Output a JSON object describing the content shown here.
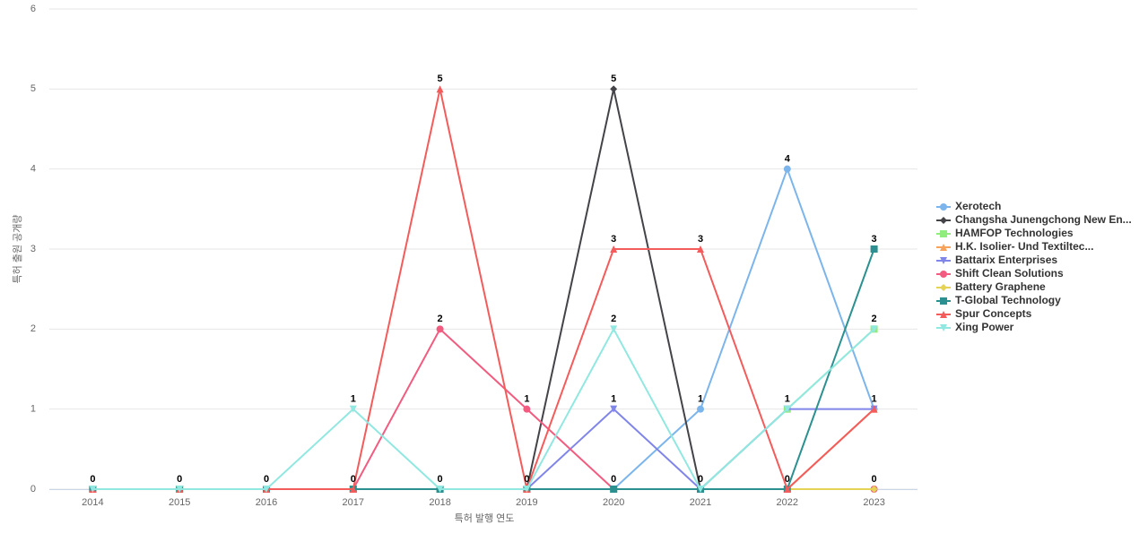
{
  "chart_data": {
    "type": "line",
    "xlabel": "특허 발행 연도",
    "ylabel": "특허 출원 공개량",
    "categories": [
      "2014",
      "2015",
      "2016",
      "2017",
      "2018",
      "2019",
      "2020",
      "2021",
      "2022",
      "2023"
    ],
    "ylim": [
      0,
      6
    ],
    "yticks": [
      0,
      1,
      2,
      3,
      4,
      5,
      6
    ],
    "grid": true,
    "series": [
      {
        "name": "Xerotech",
        "color": "#7cb5ec",
        "symbol": "circle",
        "values": [
          0,
          0,
          0,
          0,
          0,
          0,
          0,
          1,
          4,
          1
        ]
      },
      {
        "name": "Changsha Junengchong New En...",
        "color": "#434348",
        "symbol": "diamond",
        "values": [
          0,
          0,
          0,
          0,
          0,
          0,
          5,
          0,
          0,
          0
        ]
      },
      {
        "name": "HAMFOP Technologies",
        "color": "#90ed7d",
        "symbol": "square",
        "values": [
          0,
          0,
          0,
          0,
          0,
          0,
          0,
          0,
          1,
          2
        ]
      },
      {
        "name": "H.K. Isolier- Und Textiltec...",
        "color": "#f7a35c",
        "symbol": "triangle",
        "values": [
          0,
          0,
          0,
          0,
          0,
          0,
          0,
          0,
          0,
          1
        ]
      },
      {
        "name": "Battarix Enterprises",
        "color": "#8085e9",
        "symbol": "triangle-down",
        "values": [
          0,
          0,
          0,
          0,
          0,
          0,
          1,
          0,
          1,
          1
        ]
      },
      {
        "name": "Shift Clean Solutions",
        "color": "#f15c80",
        "symbol": "circle",
        "values": [
          0,
          0,
          0,
          0,
          2,
          1,
          0,
          0,
          0,
          0
        ]
      },
      {
        "name": "Battery Graphene",
        "color": "#e4d354",
        "symbol": "diamond",
        "values": [
          0,
          0,
          0,
          0,
          0,
          0,
          0,
          0,
          0,
          0
        ]
      },
      {
        "name": "T-Global Technology",
        "color": "#2b908f",
        "symbol": "square",
        "values": [
          0,
          0,
          0,
          0,
          0,
          0,
          0,
          0,
          0,
          3
        ]
      },
      {
        "name": "Spur Concepts",
        "color": "#f45b5b",
        "symbol": "triangle",
        "values": [
          0,
          0,
          0,
          0,
          5,
          0,
          3,
          3,
          0,
          1
        ]
      },
      {
        "name": "Xing Power",
        "color": "#91e8e1",
        "symbol": "triangle-down",
        "values": [
          0,
          0,
          0,
          1,
          0,
          0,
          2,
          0,
          1,
          2
        ]
      }
    ]
  }
}
